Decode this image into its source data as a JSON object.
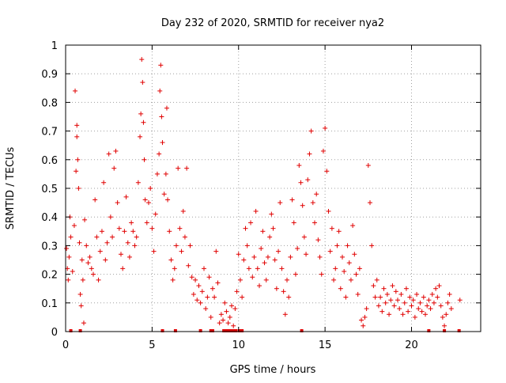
{
  "chart_data": {
    "type": "scatter",
    "title": "Day 232 of 2020, SRMTID for receiver nya2",
    "xlabel": "GPS time / hours",
    "ylabel": "SRMTID / TECUs",
    "xlim": [
      0,
      24
    ],
    "ylim": [
      0,
      1
    ],
    "xticks": [
      0,
      5,
      10,
      15,
      20
    ],
    "xtick_labels": [
      "0",
      "5",
      "10",
      "15",
      "20"
    ],
    "yticks": [
      0,
      0.1,
      0.2,
      0.3,
      0.4,
      0.5,
      0.6,
      0.7,
      0.8,
      0.9,
      1
    ],
    "ytick_labels": [
      "0",
      "0.1",
      "0.2",
      "0.3",
      "0.4",
      "0.5",
      "0.6",
      "0.7",
      "0.8",
      "0.9",
      "1"
    ],
    "grid": true,
    "marker": "+",
    "color": "#e00000",
    "series": [
      {
        "name": "SRMTID nya2",
        "points": [
          [
            0.05,
            0.29
          ],
          [
            0.1,
            0.22
          ],
          [
            0.15,
            0.18
          ],
          [
            0.2,
            0.26
          ],
          [
            0.25,
            0.4
          ],
          [
            0.3,
            0.33
          ],
          [
            0.4,
            0.21
          ],
          [
            0.5,
            0.37
          ],
          [
            0.55,
            0.84
          ],
          [
            0.6,
            0.56
          ],
          [
            0.65,
            0.68
          ],
          [
            0.65,
            0.72
          ],
          [
            0.7,
            0.6
          ],
          [
            0.75,
            0.5
          ],
          [
            0.8,
            0.31
          ],
          [
            0.85,
            0.13
          ],
          [
            0.9,
            0.09
          ],
          [
            0.95,
            0.25
          ],
          [
            1.0,
            0.18
          ],
          [
            1.05,
            0.03
          ],
          [
            1.1,
            0.39
          ],
          [
            1.2,
            0.3
          ],
          [
            1.3,
            0.24
          ],
          [
            1.4,
            0.26
          ],
          [
            1.5,
            0.22
          ],
          [
            1.6,
            0.2
          ],
          [
            1.7,
            0.46
          ],
          [
            1.8,
            0.33
          ],
          [
            1.9,
            0.18
          ],
          [
            2.0,
            0.28
          ],
          [
            2.1,
            0.35
          ],
          [
            2.2,
            0.52
          ],
          [
            2.3,
            0.25
          ],
          [
            2.4,
            0.31
          ],
          [
            2.5,
            0.62
          ],
          [
            2.6,
            0.4
          ],
          [
            2.7,
            0.33
          ],
          [
            2.8,
            0.57
          ],
          [
            2.9,
            0.63
          ],
          [
            3.0,
            0.45
          ],
          [
            3.1,
            0.36
          ],
          [
            3.2,
            0.27
          ],
          [
            3.3,
            0.22
          ],
          [
            3.4,
            0.35
          ],
          [
            3.5,
            0.47
          ],
          [
            3.6,
            0.31
          ],
          [
            3.7,
            0.26
          ],
          [
            3.8,
            0.38
          ],
          [
            3.9,
            0.35
          ],
          [
            4.0,
            0.3
          ],
          [
            4.1,
            0.33
          ],
          [
            4.2,
            0.52
          ],
          [
            4.3,
            0.68
          ],
          [
            4.35,
            0.76
          ],
          [
            4.4,
            0.95
          ],
          [
            4.45,
            0.87
          ],
          [
            4.5,
            0.73
          ],
          [
            4.55,
            0.6
          ],
          [
            4.6,
            0.46
          ],
          [
            4.7,
            0.38
          ],
          [
            4.8,
            0.45
          ],
          [
            4.9,
            0.5
          ],
          [
            5.0,
            0.36
          ],
          [
            5.1,
            0.28
          ],
          [
            5.2,
            0.41
          ],
          [
            5.3,
            0.55
          ],
          [
            5.4,
            0.62
          ],
          [
            5.45,
            0.84
          ],
          [
            5.5,
            0.93
          ],
          [
            5.55,
            0.75
          ],
          [
            5.6,
            0.66
          ],
          [
            5.7,
            0.48
          ],
          [
            5.8,
            0.55
          ],
          [
            5.85,
            0.78
          ],
          [
            5.9,
            0.46
          ],
          [
            6.0,
            0.35
          ],
          [
            6.1,
            0.25
          ],
          [
            6.2,
            0.18
          ],
          [
            6.3,
            0.22
          ],
          [
            6.4,
            0.3
          ],
          [
            6.5,
            0.57
          ],
          [
            6.6,
            0.36
          ],
          [
            6.7,
            0.28
          ],
          [
            6.8,
            0.42
          ],
          [
            6.9,
            0.33
          ],
          [
            7.0,
            0.57
          ],
          [
            7.1,
            0.23
          ],
          [
            7.2,
            0.3
          ],
          [
            7.3,
            0.19
          ],
          [
            7.4,
            0.13
          ],
          [
            7.5,
            0.18
          ],
          [
            7.6,
            0.11
          ],
          [
            7.7,
            0.16
          ],
          [
            7.8,
            0.1
          ],
          [
            7.9,
            0.14
          ],
          [
            8.0,
            0.22
          ],
          [
            8.1,
            0.08
          ],
          [
            8.2,
            0.12
          ],
          [
            8.3,
            0.19
          ],
          [
            8.4,
            0.05
          ],
          [
            8.5,
            0.15
          ],
          [
            8.6,
            0.12
          ],
          [
            8.7,
            0.28
          ],
          [
            8.8,
            0.17
          ],
          [
            8.9,
            0.03
          ],
          [
            9.0,
            0.06
          ],
          [
            9.1,
            0.04
          ],
          [
            9.2,
            0.1
          ],
          [
            9.3,
            0.07
          ],
          [
            9.4,
            0.03
          ],
          [
            9.5,
            0.05
          ],
          [
            9.6,
            0.09
          ],
          [
            9.7,
            0.02
          ],
          [
            9.8,
            0.08
          ],
          [
            9.9,
            0.14
          ],
          [
            10.0,
            0.27
          ],
          [
            10.1,
            0.18
          ],
          [
            10.2,
            0.12
          ],
          [
            10.3,
            0.25
          ],
          [
            10.4,
            0.36
          ],
          [
            10.5,
            0.3
          ],
          [
            10.6,
            0.22
          ],
          [
            10.7,
            0.38
          ],
          [
            10.8,
            0.19
          ],
          [
            10.9,
            0.26
          ],
          [
            11.0,
            0.42
          ],
          [
            11.1,
            0.22
          ],
          [
            11.2,
            0.16
          ],
          [
            11.3,
            0.29
          ],
          [
            11.4,
            0.35
          ],
          [
            11.5,
            0.24
          ],
          [
            11.6,
            0.18
          ],
          [
            11.7,
            0.26
          ],
          [
            11.8,
            0.33
          ],
          [
            11.9,
            0.41
          ],
          [
            12.0,
            0.36
          ],
          [
            12.1,
            0.25
          ],
          [
            12.2,
            0.15
          ],
          [
            12.3,
            0.28
          ],
          [
            12.4,
            0.45
          ],
          [
            12.5,
            0.22
          ],
          [
            12.6,
            0.14
          ],
          [
            12.7,
            0.06
          ],
          [
            12.8,
            0.18
          ],
          [
            12.9,
            0.12
          ],
          [
            13.0,
            0.26
          ],
          [
            13.1,
            0.46
          ],
          [
            13.2,
            0.38
          ],
          [
            13.3,
            0.2
          ],
          [
            13.4,
            0.29
          ],
          [
            13.5,
            0.58
          ],
          [
            13.6,
            0.52
          ],
          [
            13.7,
            0.44
          ],
          [
            13.8,
            0.33
          ],
          [
            13.9,
            0.27
          ],
          [
            14.0,
            0.53
          ],
          [
            14.1,
            0.62
          ],
          [
            14.2,
            0.7
          ],
          [
            14.3,
            0.45
          ],
          [
            14.4,
            0.38
          ],
          [
            14.5,
            0.48
          ],
          [
            14.6,
            0.32
          ],
          [
            14.7,
            0.26
          ],
          [
            14.8,
            0.2
          ],
          [
            14.9,
            0.63
          ],
          [
            15.0,
            0.71
          ],
          [
            15.1,
            0.56
          ],
          [
            15.2,
            0.42
          ],
          [
            15.3,
            0.28
          ],
          [
            15.4,
            0.36
          ],
          [
            15.5,
            0.18
          ],
          [
            15.6,
            0.22
          ],
          [
            15.7,
            0.3
          ],
          [
            15.8,
            0.35
          ],
          [
            15.9,
            0.15
          ],
          [
            16.0,
            0.26
          ],
          [
            16.1,
            0.21
          ],
          [
            16.2,
            0.12
          ],
          [
            16.3,
            0.3
          ],
          [
            16.4,
            0.24
          ],
          [
            16.5,
            0.18
          ],
          [
            16.6,
            0.37
          ],
          [
            16.7,
            0.27
          ],
          [
            16.8,
            0.2
          ],
          [
            16.9,
            0.13
          ],
          [
            17.0,
            0.22
          ],
          [
            17.1,
            0.04
          ],
          [
            17.2,
            0.02
          ],
          [
            17.3,
            0.05
          ],
          [
            17.4,
            0.08
          ],
          [
            17.5,
            0.58
          ],
          [
            17.6,
            0.45
          ],
          [
            17.7,
            0.3
          ],
          [
            17.8,
            0.16
          ],
          [
            17.9,
            0.12
          ],
          [
            18.0,
            0.18
          ],
          [
            18.1,
            0.09
          ],
          [
            18.2,
            0.12
          ],
          [
            18.3,
            0.07
          ],
          [
            18.4,
            0.15
          ],
          [
            18.5,
            0.1
          ],
          [
            18.6,
            0.13
          ],
          [
            18.7,
            0.06
          ],
          [
            18.8,
            0.11
          ],
          [
            18.9,
            0.16
          ],
          [
            19.0,
            0.09
          ],
          [
            19.1,
            0.14
          ],
          [
            19.2,
            0.11
          ],
          [
            19.3,
            0.08
          ],
          [
            19.4,
            0.13
          ],
          [
            19.5,
            0.06
          ],
          [
            19.6,
            0.1
          ],
          [
            19.7,
            0.15
          ],
          [
            19.8,
            0.07
          ],
          [
            19.9,
            0.12
          ],
          [
            20.0,
            0.09
          ],
          [
            20.1,
            0.11
          ],
          [
            20.2,
            0.05
          ],
          [
            20.3,
            0.13
          ],
          [
            20.4,
            0.08
          ],
          [
            20.5,
            0.1
          ],
          [
            20.6,
            0.07
          ],
          [
            20.7,
            0.12
          ],
          [
            20.8,
            0.06
          ],
          [
            20.9,
            0.09
          ],
          [
            21.0,
            0.11
          ],
          [
            21.1,
            0.08
          ],
          [
            21.2,
            0.13
          ],
          [
            21.3,
            0.1
          ],
          [
            21.4,
            0.15
          ],
          [
            21.5,
            0.12
          ],
          [
            21.6,
            0.16
          ],
          [
            21.7,
            0.09
          ],
          [
            21.8,
            0.05
          ],
          [
            21.9,
            0.02
          ],
          [
            22.0,
            0.06
          ],
          [
            22.1,
            0.1
          ],
          [
            22.2,
            0.13
          ],
          [
            22.3,
            0.08
          ],
          [
            22.8,
            0.11
          ]
        ]
      }
    ],
    "zero_markers_x": [
      0.3,
      0.85,
      5.6,
      6.35,
      7.8,
      8.4,
      8.5,
      9.15,
      9.3,
      9.45,
      9.6,
      9.75,
      9.85,
      10.05,
      10.2,
      13.65,
      21.0,
      21.9,
      22.75
    ]
  }
}
